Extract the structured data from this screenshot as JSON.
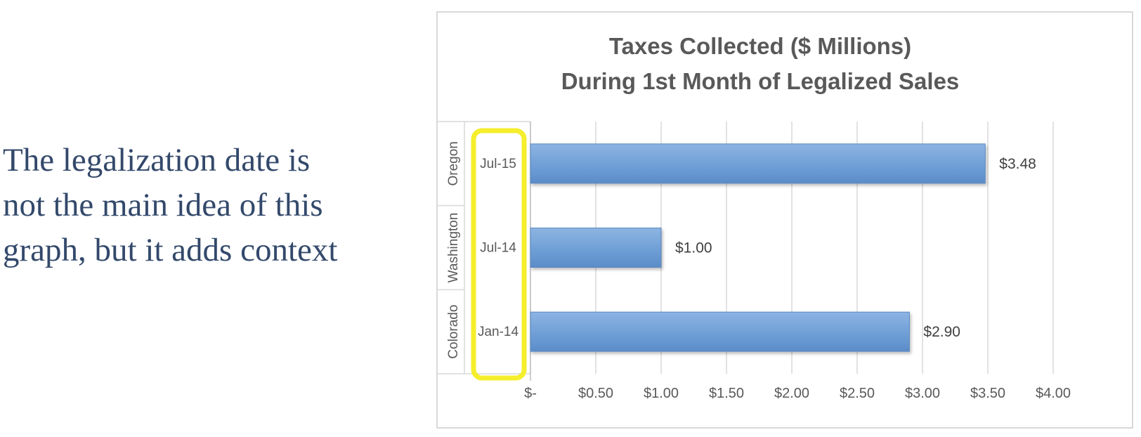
{
  "caption": {
    "lines": [
      "The legalization date is",
      "not the main idea of this",
      "graph, but it adds context"
    ]
  },
  "chart_data": {
    "type": "bar",
    "orientation": "horizontal",
    "title": [
      "Taxes Collected ($ Millions)",
      "During 1st Month of Legalized Sales"
    ],
    "categories": [
      {
        "group": "Oregon",
        "date": "Jul-15"
      },
      {
        "group": "Washington",
        "date": "Jul-14"
      },
      {
        "group": "Colorado",
        "date": "Jan-14"
      }
    ],
    "values": [
      3.48,
      1.0,
      2.9
    ],
    "data_labels": [
      "$3.48",
      "$1.00",
      "$2.90"
    ],
    "xlim": [
      0,
      4
    ],
    "x_ticks": [
      0,
      0.5,
      1,
      1.5,
      2,
      2.5,
      3,
      3.5,
      4
    ],
    "x_tick_labels": [
      "$-",
      "$0.50",
      "$1.00",
      "$1.50",
      "$2.00",
      "$2.50",
      "$3.00",
      "$3.50",
      "$4.00"
    ],
    "grid": true,
    "legend": "none",
    "bar_color": "#6f9fd6",
    "highlight_color": "#f5ee2c"
  }
}
